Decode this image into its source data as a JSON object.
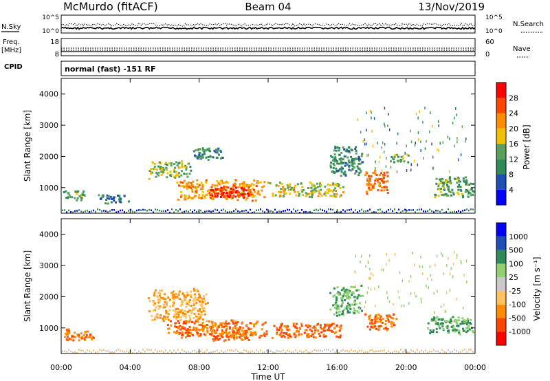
{
  "header": {
    "station": "McMurdo (fitACF)",
    "beam": "Beam 04",
    "date": "13/Nov/2019"
  },
  "noise_panel": {
    "left_label": "N.Sky",
    "right_label": "N.Search",
    "left_ticks": [
      "10^5",
      "10^0"
    ],
    "right_ticks": [
      "10^5",
      "10^0"
    ]
  },
  "freq_panel": {
    "left_label_1": "Freq.",
    "left_label_2": "[MHz]",
    "right_label": "Nave",
    "left_ticks": [
      "18",
      "8"
    ],
    "right_ticks": [
      "60",
      "0"
    ]
  },
  "cpid": {
    "label": "CPID",
    "value": "normal (fast) -151 RF"
  },
  "colors": {
    "power_scale": [
      "#0000ff",
      "#1f4fb4",
      "#2e8b57",
      "#5aa05a",
      "#f0c000",
      "#ff8c00",
      "#ff4500",
      "#ff0000"
    ],
    "velocity_scale": [
      "#ff0000",
      "#ff4500",
      "#ff8c00",
      "#ffc060",
      "#c8c8c8",
      "#90d070",
      "#2e8b57",
      "#1f4fb4",
      "#0000ff"
    ]
  },
  "chart_data": [
    {
      "type": "heatmap",
      "panel": "power",
      "ylabel": "Slant Range [km]",
      "yticks": [
        "1000",
        "2000",
        "3000",
        "4000"
      ],
      "ylim": [
        180,
        4500
      ],
      "colorbar_label": "Power [dB]",
      "colorbar_ticks": [
        "4",
        "8",
        "12",
        "16",
        "20",
        "24",
        "28"
      ],
      "colorbar_range": [
        0,
        30
      ],
      "regions": [
        {
          "t": [
            0.1,
            1.4
          ],
          "r": [
            600,
            950
          ],
          "value": 12
        },
        {
          "t": [
            2.0,
            4.0
          ],
          "r": [
            500,
            800
          ],
          "value": 8
        },
        {
          "t": [
            5.0,
            7.5
          ],
          "r": [
            1300,
            1900
          ],
          "value": 14
        },
        {
          "t": [
            6.5,
            12.0
          ],
          "r": [
            600,
            1300
          ],
          "value": 20
        },
        {
          "t": [
            8.5,
            11.0
          ],
          "r": [
            700,
            1050
          ],
          "value": 28
        },
        {
          "t": [
            7.5,
            9.5
          ],
          "r": [
            1900,
            2300
          ],
          "value": 10
        },
        {
          "t": [
            12.0,
            16.5
          ],
          "r": [
            700,
            1200
          ],
          "value": 16
        },
        {
          "t": [
            15.5,
            17.5
          ],
          "r": [
            1400,
            2400
          ],
          "value": 10
        },
        {
          "t": [
            17.5,
            19.0
          ],
          "r": [
            800,
            1600
          ],
          "value": 22
        },
        {
          "t": [
            19.0,
            20.2
          ],
          "r": [
            1800,
            2100
          ],
          "value": 12
        },
        {
          "t": [
            21.5,
            24.0
          ],
          "r": [
            700,
            1400
          ],
          "value": 12
        }
      ]
    },
    {
      "type": "heatmap",
      "panel": "velocity",
      "ylabel": "Slant Range [km]",
      "xlabel": "Time UT",
      "yticks": [
        "1000",
        "2000",
        "3000",
        "4000"
      ],
      "ylim": [
        180,
        4500
      ],
      "colorbar_label": "Velocity [m s⁻¹]",
      "colorbar_ticks": [
        "-1000",
        "-500",
        "-100",
        "-25",
        "25",
        "100",
        "500",
        "1000"
      ],
      "regions": [
        {
          "t": [
            0.1,
            2.0
          ],
          "r": [
            600,
            1000
          ],
          "value": -500
        },
        {
          "t": [
            5.0,
            8.5
          ],
          "r": [
            1200,
            2300
          ],
          "value": -100
        },
        {
          "t": [
            6.0,
            12.0
          ],
          "r": [
            700,
            1300
          ],
          "value": -500
        },
        {
          "t": [
            8.5,
            11.0
          ],
          "r": [
            600,
            1000
          ],
          "value": -500
        },
        {
          "t": [
            12.0,
            16.5
          ],
          "r": [
            700,
            1200
          ],
          "value": -500
        },
        {
          "t": [
            15.5,
            17.5
          ],
          "r": [
            1400,
            2400
          ],
          "value": 100
        },
        {
          "t": [
            17.5,
            19.5
          ],
          "r": [
            900,
            1500
          ],
          "value": -500
        },
        {
          "t": [
            21.0,
            24.0
          ],
          "r": [
            800,
            1400
          ],
          "value": 100
        }
      ]
    }
  ],
  "x_axis": {
    "label": "Time UT",
    "ticks": [
      "00:00",
      "04:00",
      "08:00",
      "12:00",
      "16:00",
      "20:00",
      "00:00"
    ]
  }
}
